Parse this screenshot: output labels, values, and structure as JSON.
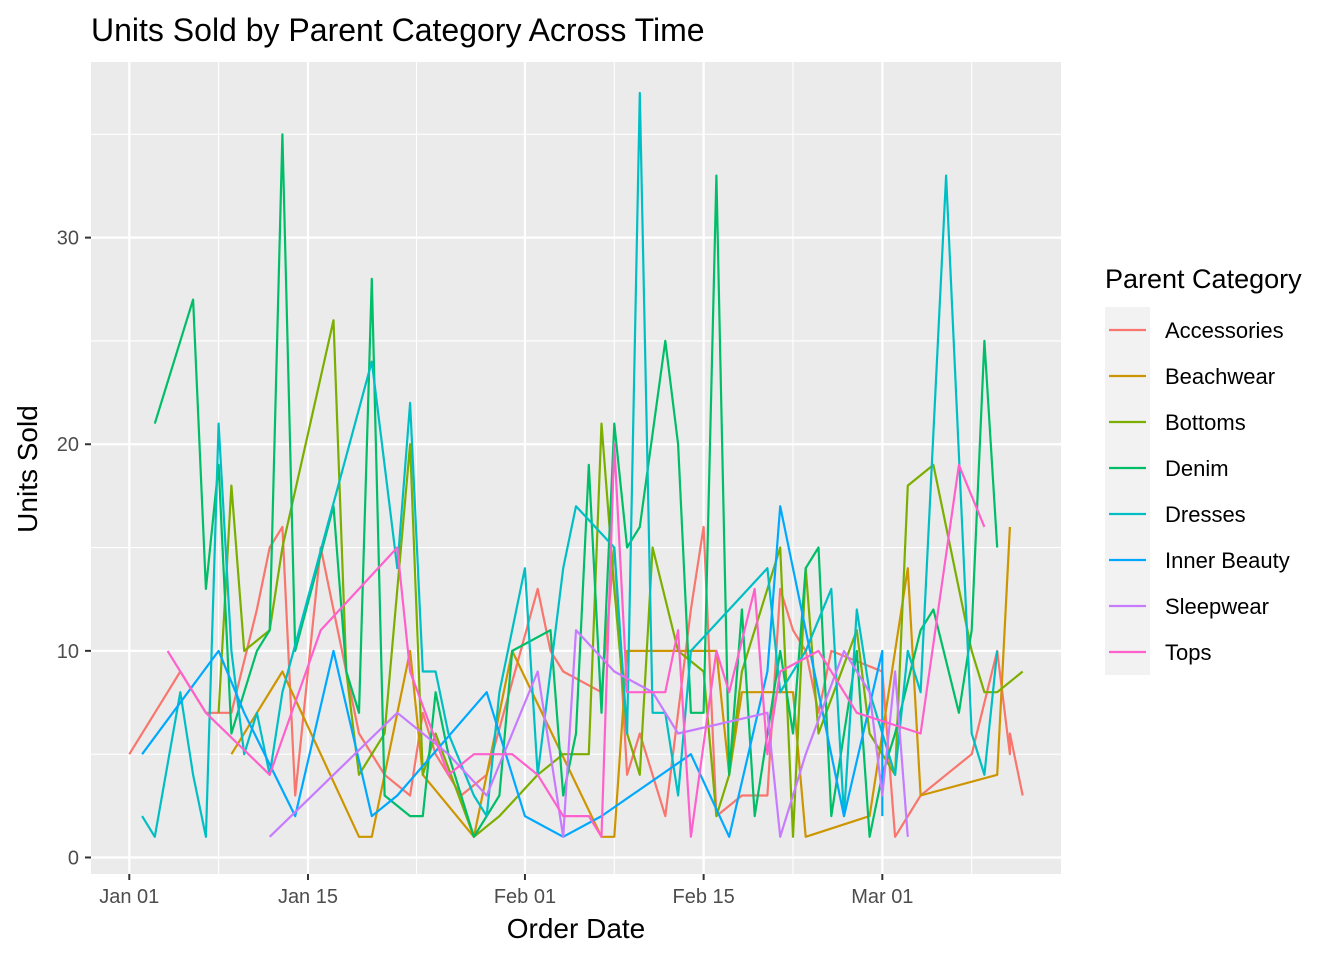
{
  "chart_data": {
    "type": "line",
    "title": "Units Sold by Parent Category Across Time",
    "xlabel": "Order Date",
    "ylabel": "Units Sold",
    "x_axis": {
      "type": "date",
      "range": [
        "2021-12-29",
        "2022-03-15"
      ],
      "ticks": [
        {
          "date": "2022-01-01",
          "label": "Jan 01"
        },
        {
          "date": "2022-01-15",
          "label": "Jan 15"
        },
        {
          "date": "2022-02-01",
          "label": "Feb 01"
        },
        {
          "date": "2022-02-15",
          "label": "Feb 15"
        },
        {
          "date": "2022-03-01",
          "label": "Mar 01"
        }
      ]
    },
    "y_axis": {
      "range": [
        -0.8,
        38.5
      ],
      "ticks": [
        0,
        10,
        20,
        30
      ]
    },
    "grid": true,
    "background": "#EBEBEB",
    "legend": {
      "title": "Parent Category",
      "position": "right"
    },
    "series": [
      {
        "name": "Accessories",
        "color": "#F8766D",
        "points": [
          [
            "2022-01-01",
            5
          ],
          [
            "2022-01-04",
            8
          ],
          [
            "2022-01-05",
            9
          ],
          [
            "2022-01-06",
            8
          ],
          [
            "2022-01-07",
            7
          ],
          [
            "2022-01-09",
            7
          ],
          [
            "2022-01-11",
            12
          ],
          [
            "2022-01-12",
            15
          ],
          [
            "2022-01-13",
            16
          ],
          [
            "2022-01-14",
            3
          ],
          [
            "2022-01-16",
            15
          ],
          [
            "2022-01-19",
            6
          ],
          [
            "2022-01-21",
            4
          ],
          [
            "2022-01-23",
            3
          ],
          [
            "2022-01-24",
            7
          ],
          [
            "2022-01-25",
            5
          ],
          [
            "2022-01-27",
            3
          ],
          [
            "2022-01-29",
            4
          ],
          [
            "2022-02-02",
            13
          ],
          [
            "2022-02-03",
            10
          ],
          [
            "2022-02-04",
            9
          ],
          [
            "2022-02-07",
            8
          ],
          [
            "2022-02-08",
            15
          ],
          [
            "2022-02-09",
            4
          ],
          [
            "2022-02-10",
            6
          ],
          [
            "2022-02-12",
            2
          ],
          [
            "2022-02-14",
            12
          ],
          [
            "2022-02-15",
            16
          ],
          [
            "2022-02-16",
            2
          ],
          [
            "2022-02-18",
            3
          ],
          [
            "2022-02-20",
            3
          ],
          [
            "2022-02-21",
            13
          ],
          [
            "2022-02-22",
            11
          ],
          [
            "2022-02-23",
            10
          ],
          [
            "2022-02-24",
            7
          ],
          [
            "2022-02-25",
            10
          ],
          [
            "2022-03-01",
            9
          ],
          [
            "2022-03-02",
            1
          ],
          [
            "2022-03-04",
            3
          ],
          [
            "2022-03-06",
            4
          ],
          [
            "2022-03-08",
            5
          ],
          [
            "2022-03-10",
            10
          ],
          [
            "2022-03-11",
            5
          ],
          [
            "2022-03-11",
            6
          ],
          [
            "2022-03-12",
            3
          ]
        ]
      },
      {
        "name": "Beachwear",
        "color": "#CD9600",
        "points": [
          [
            "2022-01-09",
            5
          ],
          [
            "2022-01-13",
            9
          ],
          [
            "2022-01-19",
            1
          ],
          [
            "2022-01-20",
            1
          ],
          [
            "2022-01-23",
            10
          ],
          [
            "2022-01-24",
            4
          ],
          [
            "2022-01-28",
            1
          ],
          [
            "2022-01-31",
            10
          ],
          [
            "2022-02-07",
            1
          ],
          [
            "2022-02-08",
            1
          ],
          [
            "2022-02-09",
            10
          ],
          [
            "2022-02-13",
            10
          ],
          [
            "2022-02-15",
            10
          ],
          [
            "2022-02-16",
            10
          ],
          [
            "2022-02-17",
            4
          ],
          [
            "2022-02-18",
            8
          ],
          [
            "2022-02-22",
            8
          ],
          [
            "2022-02-23",
            1
          ],
          [
            "2022-02-28",
            2
          ],
          [
            "2022-03-02",
            10
          ],
          [
            "2022-03-03",
            14
          ],
          [
            "2022-03-04",
            3
          ],
          [
            "2022-03-10",
            4
          ],
          [
            "2022-03-11",
            16
          ]
        ]
      },
      {
        "name": "Bottoms",
        "color": "#7CAE00",
        "points": [
          [
            "2022-01-08",
            7
          ],
          [
            "2022-01-09",
            18
          ],
          [
            "2022-01-10",
            10
          ],
          [
            "2022-01-12",
            11
          ],
          [
            "2022-01-13",
            15
          ],
          [
            "2022-01-17",
            26
          ],
          [
            "2022-01-18",
            9
          ],
          [
            "2022-01-19",
            4
          ],
          [
            "2022-01-21",
            6
          ],
          [
            "2022-01-23",
            20
          ],
          [
            "2022-01-24",
            4
          ],
          [
            "2022-01-25",
            6
          ],
          [
            "2022-01-28",
            1
          ],
          [
            "2022-01-30",
            2
          ],
          [
            "2022-02-02",
            4
          ],
          [
            "2022-02-04",
            5
          ],
          [
            "2022-02-06",
            5
          ],
          [
            "2022-02-07",
            21
          ],
          [
            "2022-02-08",
            13
          ],
          [
            "2022-02-09",
            6
          ],
          [
            "2022-02-10",
            4
          ],
          [
            "2022-02-11",
            15
          ],
          [
            "2022-02-13",
            10
          ],
          [
            "2022-02-15",
            9
          ],
          [
            "2022-02-16",
            2
          ],
          [
            "2022-02-17",
            4
          ],
          [
            "2022-02-18",
            9
          ],
          [
            "2022-02-21",
            15
          ],
          [
            "2022-02-22",
            1
          ],
          [
            "2022-02-23",
            14
          ],
          [
            "2022-02-24",
            6
          ],
          [
            "2022-02-27",
            11
          ],
          [
            "2022-02-28",
            6
          ],
          [
            "2022-03-02",
            4
          ],
          [
            "2022-03-03",
            18
          ],
          [
            "2022-03-05",
            19
          ],
          [
            "2022-03-08",
            10
          ],
          [
            "2022-03-09",
            8
          ],
          [
            "2022-03-10",
            8
          ],
          [
            "2022-03-12",
            9
          ]
        ]
      },
      {
        "name": "Denim",
        "color": "#00BE67",
        "points": [
          [
            "2022-01-03",
            21
          ],
          [
            "2022-01-06",
            27
          ],
          [
            "2022-01-07",
            13
          ],
          [
            "2022-01-08",
            19
          ],
          [
            "2022-01-09",
            6
          ],
          [
            "2022-01-11",
            10
          ],
          [
            "2022-01-12",
            11
          ],
          [
            "2022-01-13",
            35
          ],
          [
            "2022-01-14",
            10
          ],
          [
            "2022-01-17",
            17
          ],
          [
            "2022-01-18",
            9
          ],
          [
            "2022-01-19",
            7
          ],
          [
            "2022-01-20",
            28
          ],
          [
            "2022-01-21",
            3
          ],
          [
            "2022-01-23",
            2
          ],
          [
            "2022-01-24",
            2
          ],
          [
            "2022-01-25",
            8
          ],
          [
            "2022-01-26",
            5
          ],
          [
            "2022-01-28",
            1
          ],
          [
            "2022-01-30",
            3
          ],
          [
            "2022-01-31",
            10
          ],
          [
            "2022-02-03",
            11
          ],
          [
            "2022-02-04",
            3
          ],
          [
            "2022-02-05",
            6
          ],
          [
            "2022-02-06",
            19
          ],
          [
            "2022-02-07",
            7
          ],
          [
            "2022-02-08",
            21
          ],
          [
            "2022-02-09",
            15
          ],
          [
            "2022-02-10",
            16
          ],
          [
            "2022-02-12",
            25
          ],
          [
            "2022-02-13",
            20
          ],
          [
            "2022-02-14",
            7
          ],
          [
            "2022-02-15",
            7
          ],
          [
            "2022-02-16",
            33
          ],
          [
            "2022-02-17",
            4
          ],
          [
            "2022-02-18",
            12
          ],
          [
            "2022-02-19",
            2
          ],
          [
            "2022-02-21",
            10
          ],
          [
            "2022-02-22",
            6
          ],
          [
            "2022-02-23",
            14
          ],
          [
            "2022-02-24",
            15
          ],
          [
            "2022-02-25",
            2
          ],
          [
            "2022-02-27",
            10
          ],
          [
            "2022-02-28",
            1
          ],
          [
            "2022-03-01",
            4
          ],
          [
            "2022-03-02",
            6
          ],
          [
            "2022-03-04",
            11
          ],
          [
            "2022-03-05",
            12
          ],
          [
            "2022-03-07",
            7
          ],
          [
            "2022-03-08",
            11
          ],
          [
            "2022-03-09",
            25
          ],
          [
            "2022-03-10",
            15
          ]
        ]
      },
      {
        "name": "Dresses",
        "color": "#00BFC4",
        "points": [
          [
            "2022-01-02",
            2
          ],
          [
            "2022-01-03",
            1
          ],
          [
            "2022-01-05",
            8
          ],
          [
            "2022-01-06",
            4
          ],
          [
            "2022-01-07",
            1
          ],
          [
            "2022-01-08",
            21
          ],
          [
            "2022-01-09",
            10
          ],
          [
            "2022-01-10",
            5
          ],
          [
            "2022-01-11",
            7
          ],
          [
            "2022-01-12",
            4
          ],
          [
            "2022-01-13",
            8
          ],
          [
            "2022-01-20",
            24
          ],
          [
            "2022-01-22",
            14
          ],
          [
            "2022-01-23",
            22
          ],
          [
            "2022-01-24",
            9
          ],
          [
            "2022-01-25",
            9
          ],
          [
            "2022-01-26",
            6
          ],
          [
            "2022-01-28",
            3
          ],
          [
            "2022-01-29",
            2
          ],
          [
            "2022-01-30",
            8
          ],
          [
            "2022-02-01",
            14
          ],
          [
            "2022-02-02",
            4
          ],
          [
            "2022-02-04",
            14
          ],
          [
            "2022-02-05",
            17
          ],
          [
            "2022-02-08",
            15
          ],
          [
            "2022-02-09",
            6
          ],
          [
            "2022-02-10",
            37
          ],
          [
            "2022-02-11",
            7
          ],
          [
            "2022-02-12",
            7
          ],
          [
            "2022-02-13",
            3
          ],
          [
            "2022-02-14",
            10
          ],
          [
            "2022-02-20",
            14
          ],
          [
            "2022-02-21",
            8
          ],
          [
            "2022-02-23",
            10
          ],
          [
            "2022-02-25",
            13
          ],
          [
            "2022-02-26",
            2
          ],
          [
            "2022-02-27",
            12
          ],
          [
            "2022-02-28",
            8
          ],
          [
            "2022-03-02",
            4
          ],
          [
            "2022-03-03",
            10
          ],
          [
            "2022-03-04",
            8
          ],
          [
            "2022-03-06",
            33
          ],
          [
            "2022-03-08",
            6
          ],
          [
            "2022-03-09",
            4
          ],
          [
            "2022-03-10",
            10
          ]
        ]
      },
      {
        "name": "Inner Beauty",
        "color": "#00A9FF",
        "points": [
          [
            "2022-01-02",
            5
          ],
          [
            "2022-01-08",
            10
          ],
          [
            "2022-01-10",
            7
          ],
          [
            "2022-01-14",
            2
          ],
          [
            "2022-01-17",
            10
          ],
          [
            "2022-01-20",
            2
          ],
          [
            "2022-01-22",
            3
          ],
          [
            "2022-01-29",
            8
          ],
          [
            "2022-02-01",
            2
          ],
          [
            "2022-02-04",
            1
          ],
          [
            "2022-02-07",
            2
          ],
          [
            "2022-02-14",
            5
          ],
          [
            "2022-02-17",
            1
          ],
          [
            "2022-02-20",
            9
          ],
          [
            "2022-02-21",
            17
          ],
          [
            "2022-02-26",
            2
          ],
          [
            "2022-02-29",
            10
          ],
          [
            "2022-03-01",
            2
          ]
        ]
      },
      {
        "name": "Sleepwear",
        "color": "#C77CFF",
        "points": [
          [
            "2022-01-12",
            1
          ],
          [
            "2022-01-17",
            4
          ],
          [
            "2022-01-22",
            7
          ],
          [
            "2022-01-26",
            5
          ],
          [
            "2022-01-29",
            3
          ],
          [
            "2022-02-02",
            9
          ],
          [
            "2022-02-04",
            1
          ],
          [
            "2022-02-05",
            11
          ],
          [
            "2022-02-08",
            9
          ],
          [
            "2022-02-11",
            8
          ],
          [
            "2022-02-13",
            6
          ],
          [
            "2022-02-20",
            7
          ],
          [
            "2022-02-21",
            1
          ],
          [
            "2022-02-23",
            5
          ],
          [
            "2022-02-26",
            10
          ],
          [
            "2022-02-28",
            8
          ],
          [
            "2022-03-01",
            3
          ],
          [
            "2022-03-02",
            9
          ],
          [
            "2022-03-03",
            1
          ]
        ]
      },
      {
        "name": "Tops",
        "color": "#FF61CC",
        "points": [
          [
            "2022-01-04",
            10
          ],
          [
            "2022-01-07",
            7
          ],
          [
            "2022-01-12",
            4
          ],
          [
            "2022-01-16",
            11
          ],
          [
            "2022-01-22",
            15
          ],
          [
            "2022-01-23",
            9
          ],
          [
            "2022-01-26",
            4
          ],
          [
            "2022-01-28",
            5
          ],
          [
            "2022-01-31",
            5
          ],
          [
            "2022-02-02",
            4
          ],
          [
            "2022-02-04",
            2
          ],
          [
            "2022-02-06",
            2
          ],
          [
            "2022-02-07",
            1
          ],
          [
            "2022-02-08",
            20
          ],
          [
            "2022-02-09",
            8
          ],
          [
            "2022-02-12",
            8
          ],
          [
            "2022-02-13",
            11
          ],
          [
            "2022-02-14",
            1
          ],
          [
            "2022-02-16",
            10
          ],
          [
            "2022-02-17",
            8
          ],
          [
            "2022-02-19",
            13
          ],
          [
            "2022-02-20",
            5
          ],
          [
            "2022-02-21",
            9
          ],
          [
            "2022-02-24",
            10
          ],
          [
            "2022-02-27",
            7
          ],
          [
            "2022-03-04",
            6
          ],
          [
            "2022-03-07",
            19
          ],
          [
            "2022-03-09",
            16
          ]
        ]
      }
    ]
  }
}
